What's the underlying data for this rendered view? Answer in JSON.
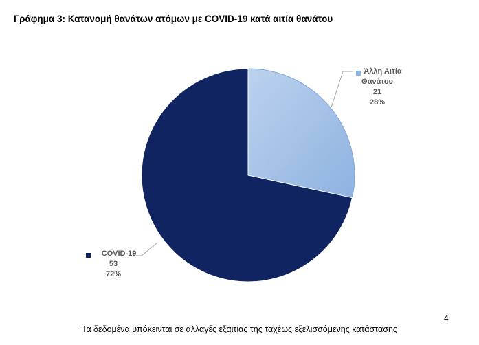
{
  "page": {
    "title": "Γράφημα 3: Κατανομή θανάτων ατόμων με COVID-19 κατά αιτία θανάτου",
    "page_number": "4",
    "footer": "Τα δεδομένα υπόκεινται σε αλλαγές εξαιτίας της ταχέως εξελισσόμενης κατάστασης"
  },
  "chart_data": {
    "type": "pie",
    "title": "Γράφημα 3: Κατανομή θανάτων ατόμων με COVID-19 κατά αιτία θανάτου",
    "legend": "data-labels",
    "slices": [
      {
        "name_lines": [
          "Άλλη Αιτία",
          "Θανάτου"
        ],
        "value": 21,
        "percent_label": "28%",
        "color": "#a9c4e6",
        "color_dark": "#8db3e2"
      },
      {
        "name_lines": [
          "COVID-19"
        ],
        "value": 53,
        "percent_label": "72%",
        "color": "#0f2460",
        "color_dark": "#0f2460"
      }
    ]
  }
}
